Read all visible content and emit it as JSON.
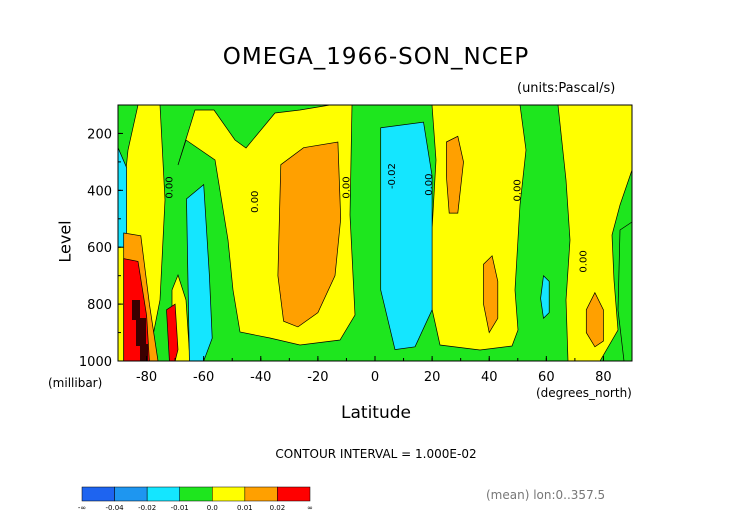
{
  "chart_data": {
    "type": "heatmap",
    "title": "OMEGA_1966-SON_NCEP",
    "units_label": "(units:Pascal/s)",
    "ylabel": "Level",
    "yunits": "(millibar)",
    "xlabel": "Latitude",
    "xunits": "(degrees_north)",
    "xlim": [
      -90,
      90
    ],
    "ylim": [
      1000,
      100
    ],
    "xticks": [
      "-80",
      "-60",
      "-40",
      "-20",
      "0",
      "20",
      "40",
      "60",
      "80"
    ],
    "xtick_values": [
      -80,
      -60,
      -40,
      -20,
      0,
      20,
      40,
      60,
      80
    ],
    "yticks": [
      "200",
      "400",
      "600",
      "800",
      "1000"
    ],
    "ytick_values": [
      200,
      400,
      600,
      800,
      1000
    ],
    "contour_interval_text": "CONTOUR INTERVAL = 1.000E-02",
    "mean_text": "(mean) lon:0..357.5",
    "contour_labels": [
      {
        "text": "0.00",
        "lat": -71,
        "lev": 390
      },
      {
        "text": "0.00",
        "lat": -41,
        "lev": 440
      },
      {
        "text": "0.00",
        "lat": -9,
        "lev": 390
      },
      {
        "text": "-0.02",
        "lat": 7,
        "lev": 350
      },
      {
        "text": "0.00",
        "lat": 20,
        "lev": 380
      },
      {
        "text": "0.00",
        "lat": 51,
        "lev": 400
      },
      {
        "text": "0.00",
        "lat": 74,
        "lev": 650
      }
    ],
    "colorbar": {
      "colors": [
        "#1e64f0",
        "#1e96f0",
        "#14e6ff",
        "#1ee61e",
        "#ffff00",
        "#ffa000",
        "#ff0000"
      ],
      "labels": [
        "-∞",
        "-0.04",
        "-0.02",
        "-0.01",
        "0.0",
        "0.01",
        "0.02",
        "∞"
      ]
    },
    "regions": [
      {
        "level": "-0.02",
        "color": "#1e96f0",
        "pts": [
          [
            5,
            230
          ],
          [
            15,
            200
          ],
          [
            17,
            450
          ],
          [
            17,
            750
          ],
          [
            12,
            880
          ],
          [
            7,
            910
          ],
          [
            5,
            700
          ]
        ]
      },
      {
        "level": "-0.01",
        "color": "#14e6ff",
        "pts": [
          [
            2,
            180
          ],
          [
            17,
            160
          ],
          [
            20,
            350
          ],
          [
            20,
            820
          ],
          [
            14,
            950
          ],
          [
            7,
            960
          ],
          [
            2,
            750
          ]
        ]
      },
      {
        "level": "-0.01",
        "color": "#14e6ff",
        "pts": [
          [
            -66,
            430
          ],
          [
            -60,
            380
          ],
          [
            -58,
            700
          ],
          [
            -57,
            920
          ],
          [
            -60,
            1000
          ],
          [
            -65,
            1000
          ]
        ]
      },
      {
        "level": "-0.01",
        "color": "#14e6ff",
        "pts": [
          [
            -90,
            250
          ],
          [
            -87,
            320
          ],
          [
            -87,
            550
          ],
          [
            -88,
            600
          ],
          [
            -90,
            600
          ]
        ]
      },
      {
        "level": "-0.01",
        "color": "#14e6ff",
        "pts": [
          [
            59,
            700
          ],
          [
            61,
            720
          ],
          [
            61,
            830
          ],
          [
            59,
            850
          ],
          [
            58,
            780
          ]
        ]
      },
      {
        "level": "0.01",
        "color": "#ffa000",
        "pts": [
          [
            -33,
            310
          ],
          [
            -25,
            250
          ],
          [
            -13,
            230
          ],
          [
            -12,
            500
          ],
          [
            -14,
            700
          ],
          [
            -20,
            830
          ],
          [
            -27,
            880
          ],
          [
            -32,
            860
          ],
          [
            -34,
            700
          ]
        ]
      },
      {
        "level": "0.01",
        "color": "#ffa000",
        "pts": [
          [
            25,
            230
          ],
          [
            29,
            210
          ],
          [
            31,
            300
          ],
          [
            29,
            480
          ],
          [
            26,
            480
          ],
          [
            25,
            350
          ]
        ]
      },
      {
        "level": "0.01",
        "color": "#ffa000",
        "pts": [
          [
            38,
            660
          ],
          [
            41,
            630
          ],
          [
            43,
            720
          ],
          [
            43,
            850
          ],
          [
            40,
            900
          ],
          [
            38,
            800
          ]
        ]
      },
      {
        "level": "0.01",
        "color": "#ffa000",
        "pts": [
          [
            74,
            820
          ],
          [
            77,
            760
          ],
          [
            80,
            820
          ],
          [
            80,
            930
          ],
          [
            77,
            950
          ],
          [
            74,
            900
          ]
        ]
      },
      {
        "level": "0.01",
        "color": "#ffa000",
        "pts": [
          [
            -88,
            550
          ],
          [
            -82,
            560
          ],
          [
            -79,
            800
          ],
          [
            -76,
            1000
          ],
          [
            -88,
            1000
          ]
        ]
      },
      {
        "level": "0.02",
        "color": "#ff0000",
        "pts": [
          [
            -88,
            640
          ],
          [
            -83,
            650
          ],
          [
            -80,
            840
          ],
          [
            -79,
            1000
          ],
          [
            -88,
            1000
          ]
        ]
      },
      {
        "level": "0.02",
        "color": "#ff0000",
        "pts": [
          [
            -73,
            820
          ],
          [
            -70,
            800
          ],
          [
            -69,
            960
          ],
          [
            -70,
            1000
          ],
          [
            -72,
            1000
          ]
        ]
      }
    ]
  }
}
